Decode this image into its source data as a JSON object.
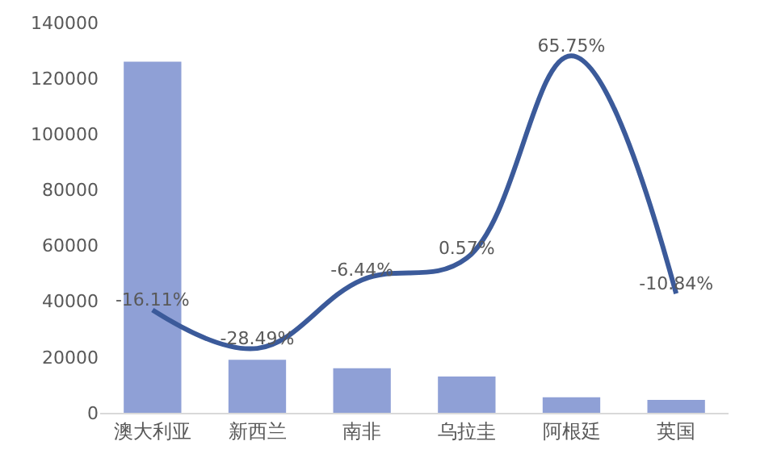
{
  "chart_data": {
    "type": "bar",
    "categories": [
      "澳大利亚",
      "新西兰",
      "南非",
      "乌拉圭",
      "阿根廷",
      "英国"
    ],
    "series": [
      {
        "color": "#8fa0d6",
        "values": [
          126000,
          19000,
          16000,
          13000,
          5600,
          4600
        ]
      },
      {
        "type": "line",
        "axis": "y2",
        "color": "#3b5a9a",
        "values": [
          -16.11,
          -28.49,
          -6.44,
          0.57,
          65.75,
          -10.84
        ],
        "value_labels": [
          "-16.11%",
          "-28.49%",
          "-6.44%",
          "0.57%",
          "65.75%",
          "-10.84%"
        ]
      }
    ],
    "ylim": [
      0,
      140000
    ],
    "yticks": [
      0,
      20000,
      40000,
      60000,
      80000,
      100000,
      120000,
      140000
    ],
    "grid": false,
    "marker": "none",
    "line_style": "solid"
  }
}
